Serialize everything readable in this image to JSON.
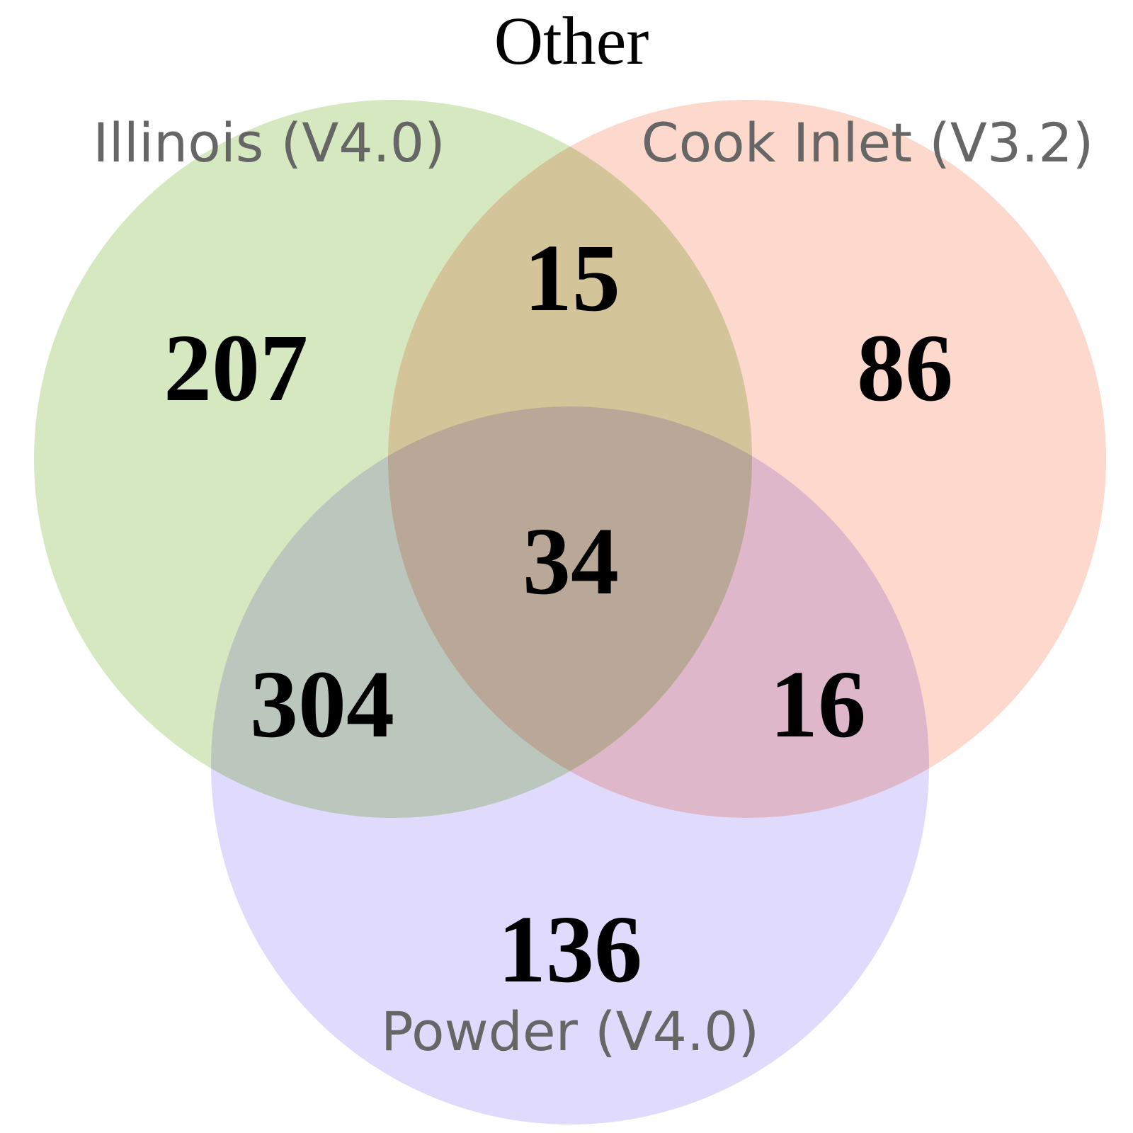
{
  "title": "Other",
  "sets": [
    {
      "id": "illinois",
      "label": "Illinois (V4.0)",
      "color": "#d5e8bf"
    },
    {
      "id": "cook-inlet",
      "label": "Cook Inlet (V3.2)",
      "color": "#fdd8cd"
    },
    {
      "id": "powder",
      "label": "Powder (V4.0)",
      "color": "#e0dafc"
    }
  ],
  "regions": {
    "illinois_only": "207",
    "cook_inlet_only": "86",
    "powder_only": "136",
    "illinois_cook_inlet": "15",
    "illinois_powder": "304",
    "cook_inlet_powder": "16",
    "all_three": "34"
  }
}
